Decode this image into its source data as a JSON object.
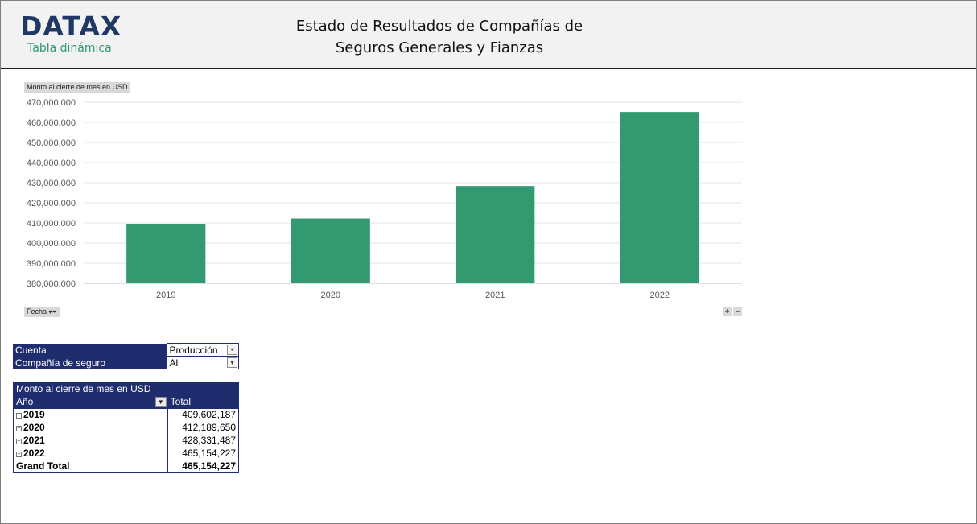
{
  "header": {
    "logo_text": "DATAX",
    "logo_subtitle": "Tabla dinámica",
    "title_line1": "Estado de Resultados de Compañías de",
    "title_line2": "Seguros Generales y Fianzas",
    "brand_color": "#1f3864",
    "accent_color": "#2e9a6e"
  },
  "pivot_chart": {
    "value_field_label": "Monto al cierre de mes en USD",
    "axis_field_label": "Fecha",
    "axis_field_icon": "filter-dropdown-icon",
    "zoom_in_label": "+",
    "zoom_out_label": "−"
  },
  "chart_data": {
    "type": "bar",
    "categories": [
      "2019",
      "2020",
      "2021",
      "2022"
    ],
    "values": [
      409602187,
      412189650,
      428331487,
      465154227
    ],
    "ylim": [
      380000000,
      470000000
    ],
    "yticks": [
      "470,000,000",
      "460,000,000",
      "450,000,000",
      "440,000,000",
      "430,000,000",
      "420,000,000",
      "410,000,000",
      "400,000,000",
      "390,000,000",
      "380,000,000"
    ],
    "ytick_values": [
      470000000,
      460000000,
      450000000,
      440000000,
      430000000,
      420000000,
      410000000,
      400000000,
      390000000,
      380000000
    ],
    "grid": true,
    "legend": "none",
    "bar_color": "#339970"
  },
  "filters": {
    "rows": [
      {
        "label": "Cuenta",
        "value": "Producción"
      },
      {
        "label": "Compañía de seguro",
        "value": "All"
      }
    ]
  },
  "pivot_table": {
    "value_header": "Monto al cierre de mes en USD",
    "row_header": "Año",
    "column_header": "Total",
    "rows": [
      {
        "year": "2019",
        "total": "409,602,187"
      },
      {
        "year": "2020",
        "total": "412,189,650"
      },
      {
        "year": "2021",
        "total": "428,331,487"
      },
      {
        "year": "2022",
        "total": "465,154,227"
      }
    ],
    "grand_total_label": "Grand Total",
    "grand_total_value": "465,154,227",
    "header_color": "#1f2d6e"
  }
}
